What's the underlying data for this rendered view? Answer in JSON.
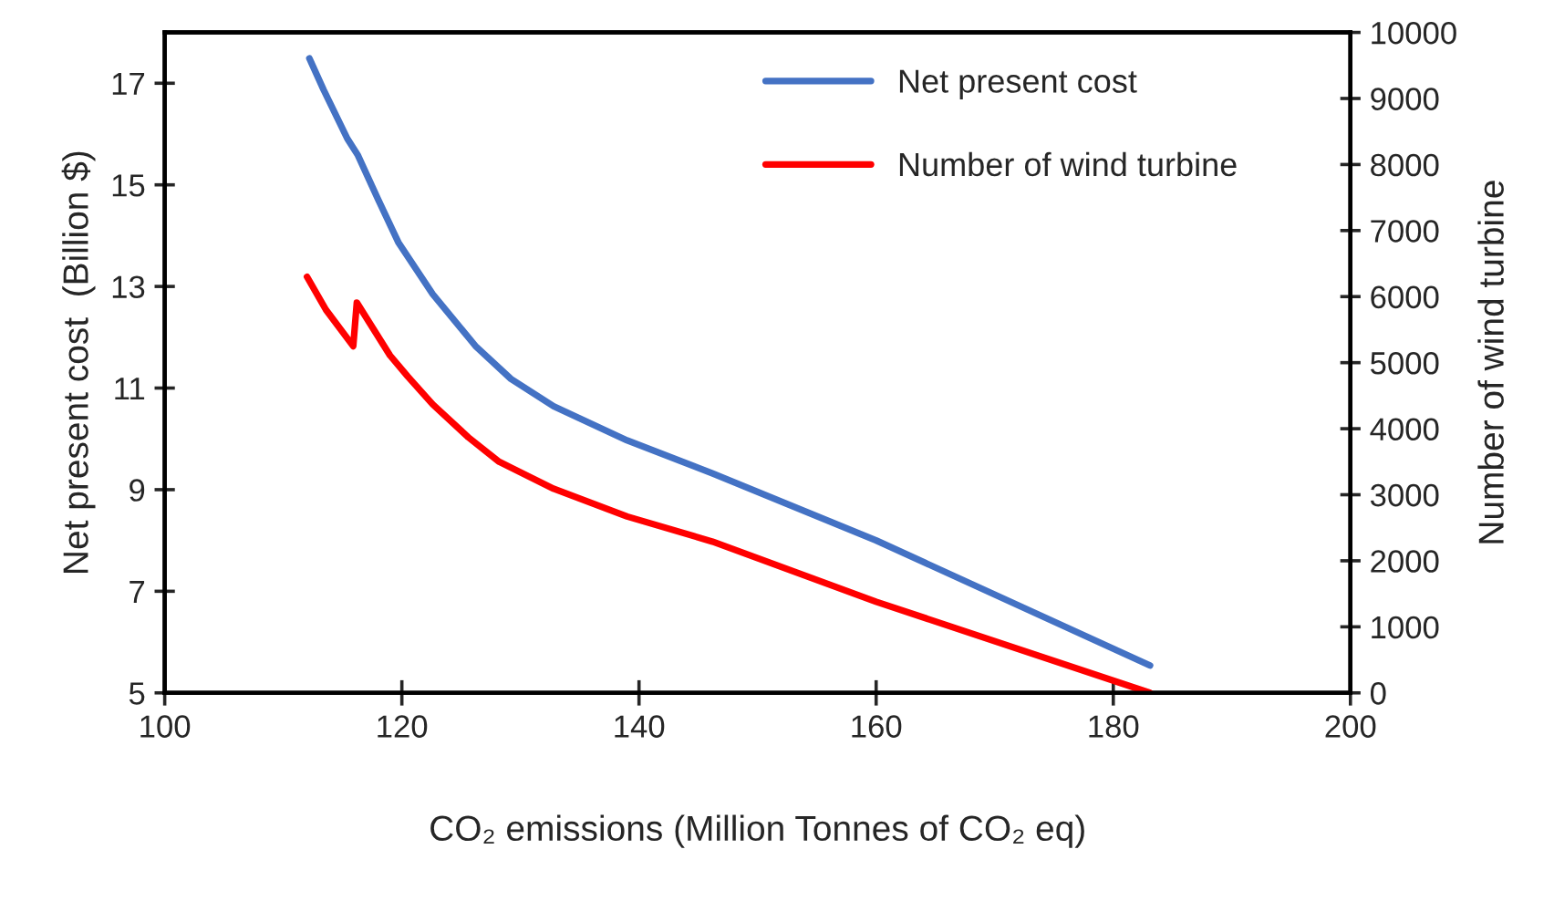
{
  "chart_data": {
    "type": "line",
    "xlabel": "CO₂ emissions (Million Tonnes of CO₂ eq)",
    "ylabel": "Net present cost  (Billion $)",
    "y2label": "Number of wind turbine",
    "xlim": [
      100,
      200
    ],
    "xticks": [
      100,
      120,
      140,
      160,
      180,
      200
    ],
    "ylim": [
      5,
      18
    ],
    "yticks": [
      5,
      7,
      9,
      11,
      13,
      15,
      17
    ],
    "y2lim": [
      0,
      10000
    ],
    "y2ticks": [
      0,
      1000,
      2000,
      3000,
      4000,
      5000,
      6000,
      7000,
      8000,
      9000,
      10000
    ],
    "legend": "top right",
    "grid": false,
    "marker": "none",
    "line_style": "solid",
    "series": [
      {
        "name": "Net present cost",
        "color": "#4472c4",
        "x": [
          112.2,
          113.4,
          115.4,
          116.3,
          118.0,
          119.7,
          122.6,
          126.2,
          129.2,
          132.8,
          139.0,
          146.2,
          160.0,
          183.1
        ],
        "values": [
          17.49,
          16.87,
          15.91,
          15.58,
          14.71,
          13.87,
          12.85,
          11.83,
          11.18,
          10.64,
          9.97,
          9.32,
          8.0,
          5.54
        ]
      },
      {
        "name": "Number of wind turbine",
        "color": "#ff0000",
        "axis": "y2",
        "x": [
          112.0,
          113.6,
          115.9,
          116.2,
          119.0,
          120.5,
          122.6,
          125.6,
          128.2,
          132.8,
          139.0,
          146.2,
          160.0,
          183.1
        ],
        "values": [
          6300,
          5800,
          5250,
          5910,
          5110,
          4790,
          4370,
          3870,
          3500,
          3090,
          2670,
          2290,
          1380,
          0
        ]
      }
    ]
  }
}
